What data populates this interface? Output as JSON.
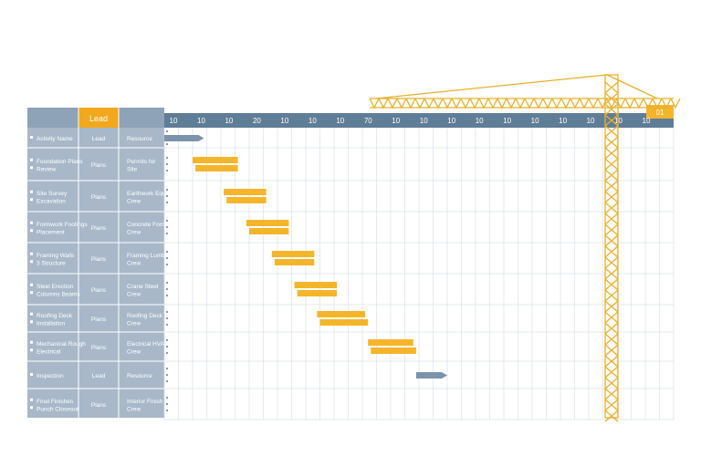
{
  "chart_data": {
    "type": "gantt",
    "title": "",
    "header": {
      "col_name_label": "",
      "col_lead_label": "Lead",
      "col_resource_label": "",
      "highlight_label": "Lead"
    },
    "timeline": {
      "ticks": [
        "10",
        "10",
        "10",
        "20",
        "10",
        "10",
        "10",
        "70",
        "10",
        "10",
        "10",
        "10",
        "10",
        "10",
        "10",
        "10",
        "10",
        "10"
      ],
      "end_marker_label": "01",
      "span": [
        0,
        18
      ]
    },
    "rows": [
      {
        "name": "Activity Name",
        "lead": "Lead",
        "resource": "Resource",
        "bars": [],
        "milestone": {
          "start": 0,
          "end": 1.4
        }
      },
      {
        "name": "Foundation Plans Review",
        "lead": "Plans",
        "resource": "Permits for Site",
        "bars": [
          {
            "start": 1.0,
            "end": 2.6
          },
          {
            "start": 1.1,
            "end": 2.6
          }
        ],
        "milestone": null
      },
      {
        "name": "Site Survey Excavation",
        "lead": "Plans",
        "resource": "Earthwork Equip Crew",
        "bars": [
          {
            "start": 2.1,
            "end": 3.6
          },
          {
            "start": 2.2,
            "end": 3.6
          }
        ],
        "milestone": null
      },
      {
        "name": "Formwork Footings Placement",
        "lead": "Plans",
        "resource": "Concrete Forms Crew",
        "bars": [
          {
            "start": 2.9,
            "end": 4.4
          },
          {
            "start": 3.0,
            "end": 4.4
          }
        ],
        "milestone": null
      },
      {
        "name": "Framing Walls 3 Structure",
        "lead": "Plans",
        "resource": "Framing Lumber Crew",
        "bars": [
          {
            "start": 3.8,
            "end": 5.3
          },
          {
            "start": 3.9,
            "end": 5.3
          }
        ],
        "milestone": null
      },
      {
        "name": "Steel Erection Columns Beams",
        "lead": "Plans",
        "resource": "Crane Steel Crew",
        "bars": [
          {
            "start": 4.6,
            "end": 6.1
          },
          {
            "start": 4.7,
            "end": 6.1
          }
        ],
        "milestone": null
      },
      {
        "name": "Roofing Deck Installation",
        "lead": "Plans",
        "resource": "Roofing Deck Crew",
        "bars": [
          {
            "start": 5.4,
            "end": 7.1
          },
          {
            "start": 5.5,
            "end": 7.2
          }
        ],
        "milestone": null
      },
      {
        "name": "Mechanical Rough Electrical",
        "lead": "Plans",
        "resource": "Electrical HVAC Crew",
        "bars": [
          {
            "start": 7.2,
            "end": 8.8
          },
          {
            "start": 7.3,
            "end": 8.9
          }
        ],
        "milestone": null
      },
      {
        "name": "Inspection",
        "lead": "Lead",
        "resource": "Resource",
        "bars": [],
        "milestone": {
          "start": 8.9,
          "end": 10.0
        }
      },
      {
        "name": "Final Finishes Punch Closeout",
        "lead": "Plans",
        "resource": "Interior Finish Crew",
        "bars": [],
        "milestone": null
      }
    ],
    "colors": {
      "header_bar": "#5f7d96",
      "label_panel": "#a3b4c6",
      "highlight": "#f2a81d",
      "task_bar": "#f5b52b",
      "milestone": "#7b93ab",
      "crane": "#e7b12c",
      "grid": "#dbe1e8"
    },
    "grid": true
  }
}
